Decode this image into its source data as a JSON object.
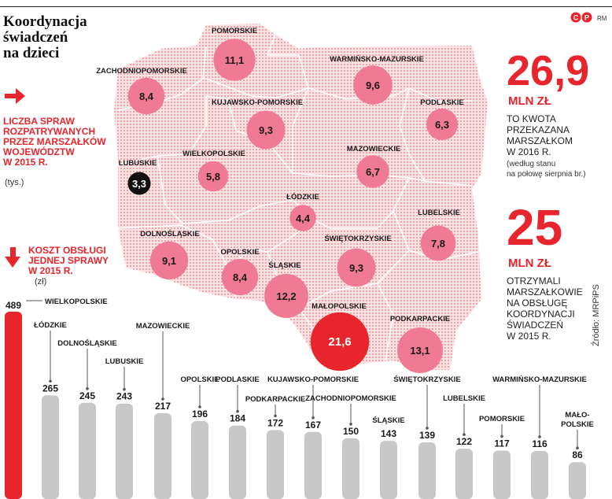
{
  "title_lines": [
    "Koordynacja",
    "świadczeń",
    "na dzieci"
  ],
  "logo_text": "RM",
  "logo_icon": "cp-logo-icon",
  "left_legend": {
    "line1": "LICZBA SPRAW",
    "line2": "ROZPATRYWANYCH",
    "line3": "PRZEZ MARSZAŁKÓW",
    "line4": "WOJEWÓDZTW",
    "line5": "W 2015 R.",
    "unit": "(tys.)"
  },
  "cost_legend": {
    "line1": "KOSZT OBSŁUGI",
    "line2": "JEDNEJ SPRAWY",
    "line3": "W 2015 R.",
    "unit": "(zł)"
  },
  "stat1": {
    "value": "26,9",
    "unit": "MLN ZŁ",
    "desc": [
      "TO KWOTA",
      "PRZEKAZANA",
      "MARSZAŁKOM",
      "W 2016 R."
    ],
    "note": [
      "(według stanu",
      "na połowę sierpnia br.)"
    ]
  },
  "stat2": {
    "value": "25",
    "unit": "MLN ZŁ",
    "desc": [
      "OTRZYMALI",
      "MARSZAŁKOWIE",
      "NA OBSŁUGĘ",
      "KOORDYNACJI",
      "ŚWIADCZEŃ",
      "W 2015 R."
    ]
  },
  "source": "Źródło: MRPiPS",
  "colors": {
    "accent": "#e8242c",
    "bubble": "#f07a93",
    "bubble_big": "#e8242c",
    "bubble_black": "#111111",
    "bar_gray": "#c8c8c8",
    "map_dot": "#f2a3a8"
  },
  "chart_data": [
    {
      "type": "bubble-map",
      "unit": "tys.",
      "regions": [
        {
          "name": "POMORSKIE",
          "value": "11,1"
        },
        {
          "name": "ZACHODNIOPOMORSKIE",
          "value": "8,4"
        },
        {
          "name": "WARMIŃSKO-MAZURSKIE",
          "value": "9,6"
        },
        {
          "name": "KUJAWSKO-POMORSKIE",
          "value": "9,3"
        },
        {
          "name": "PODLASKIE",
          "value": "6,3"
        },
        {
          "name": "WIELKOPOLSKIE",
          "value": "5,8"
        },
        {
          "name": "LUBUSKIE",
          "value": "3,3"
        },
        {
          "name": "MAZOWIECKIE",
          "value": "6,7"
        },
        {
          "name": "ŁÓDZKIE",
          "value": "4,4"
        },
        {
          "name": "LUBELSKIE",
          "value": "7,8"
        },
        {
          "name": "DOLNOŚLĄSKIE",
          "value": "9,1"
        },
        {
          "name": "OPOLSKIE",
          "value": "8,4"
        },
        {
          "name": "ŚLĄSKIE",
          "value": "12,2"
        },
        {
          "name": "ŚWIĘTOKRZYSKIE",
          "value": "9,3"
        },
        {
          "name": "MAŁOPOLSKIE",
          "value": "21,6"
        },
        {
          "name": "PODKARPACKIE",
          "value": "13,1"
        }
      ]
    },
    {
      "type": "bar",
      "unit": "zł",
      "categories": [
        "WIELKOPOLSKIE",
        "ŁÓDZKIE",
        "DOLNOŚLĄSKIE",
        "LUBUSKIE",
        "MAZOWIECKIE",
        "OPOLSKIE",
        "PODLASKIE",
        "PODKARPACKIE",
        "KUJAWSKO-POMORSKIE",
        "ZACHODNIOPOMORSKIE",
        "ŚLĄSKIE",
        "ŚWIĘTOKRZYSKIE",
        "LUBELSKIE",
        "POMORSKIE",
        "WARMIŃSKO-MAZURSKIE",
        "MAŁO-POLSKIE"
      ],
      "values": [
        489,
        265,
        245,
        243,
        217,
        196,
        184,
        172,
        167,
        150,
        143,
        139,
        122,
        117,
        116,
        86
      ],
      "highlight": "WIELKOPOLSKIE"
    }
  ]
}
